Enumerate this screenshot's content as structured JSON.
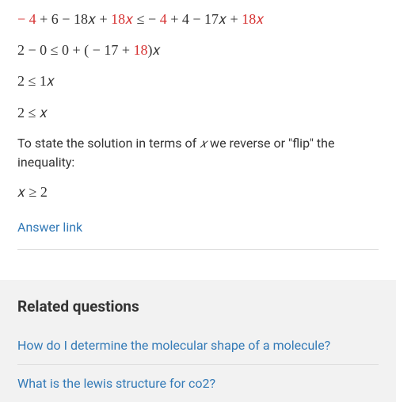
{
  "math": {
    "line1_parts": [
      {
        "t": " − 4",
        "hl": true
      },
      {
        "t": " + 6 − 18𝑥 + ",
        "hl": false
      },
      {
        "t": "18𝑥",
        "hl": true
      },
      {
        "t": " ≤  − ",
        "hl": false
      },
      {
        "t": "4",
        "hl": true
      },
      {
        "t": " + 4 − 17𝑥 + ",
        "hl": false
      },
      {
        "t": "18𝑥",
        "hl": true
      }
    ],
    "line2_parts": [
      {
        "t": "2 − 0 ≤ 0 + ( − 17 + ",
        "hl": false
      },
      {
        "t": "18",
        "hl": true
      },
      {
        "t": ")𝑥",
        "hl": false
      }
    ],
    "line3": "2 ≤ 1𝑥",
    "line4": "2 ≤ 𝑥",
    "desc_before": "To state the solution in terms of ",
    "desc_var": "𝑥",
    "desc_after": " we reverse or \"flip\" the inequality:",
    "line5": "𝑥 ≥ 2"
  },
  "links": {
    "answer": "Answer link"
  },
  "related": {
    "title": "Related questions",
    "q1": "How do I determine the molecular shape of a molecule?",
    "q2": "What is the lewis structure for co2?"
  },
  "colors": {
    "highlight": "#d63333",
    "link": "#337ab7",
    "text": "#333333",
    "divider": "#dddddd",
    "related_bg": "#f2f2f2",
    "bg": "#ffffff"
  }
}
